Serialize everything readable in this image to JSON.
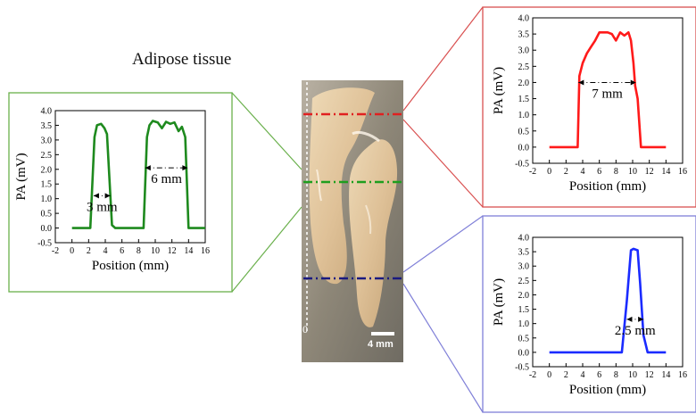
{
  "title": "Adipose tissue",
  "photo": {
    "zero_label": "0",
    "scalebar_label": "4 mm",
    "line_colors": [
      "#e02020",
      "#1e9e1e",
      "#1a1a80"
    ]
  },
  "chart_data": [
    {
      "type": "line",
      "color": "#1e8a1e",
      "frame_color": "#6ab04c",
      "xlabel": "Position (mm)",
      "ylabel": "PA (mV)",
      "xlim": [
        -2,
        16
      ],
      "ylim": [
        -0.5,
        4.0
      ],
      "xticks": [
        "-2",
        "0",
        "2",
        "4",
        "6",
        "8",
        "10",
        "12",
        "14",
        "16"
      ],
      "yticks": [
        "-0.5",
        "0.0",
        "0.5",
        "1.0",
        "1.5",
        "2.0",
        "2.5",
        "3.0",
        "3.5",
        "4.0"
      ],
      "x": [
        0,
        2.2,
        2.7,
        3.0,
        3.5,
        3.9,
        4.2,
        4.8,
        5.2,
        8.6,
        9.0,
        9.3,
        9.7,
        10.3,
        10.8,
        11.3,
        11.8,
        12.3,
        12.8,
        13.2,
        13.6,
        14.0,
        16.0
      ],
      "y": [
        0,
        0,
        3.1,
        3.5,
        3.55,
        3.4,
        3.2,
        0.1,
        0,
        0,
        3.1,
        3.5,
        3.65,
        3.6,
        3.4,
        3.62,
        3.55,
        3.6,
        3.3,
        3.45,
        3.1,
        0,
        0
      ],
      "annotations": [
        {
          "text": "3 mm",
          "x1": 2.6,
          "x2": 4.6,
          "y": 1.1
        },
        {
          "text": "6 mm",
          "x1": 8.8,
          "x2": 13.9,
          "y": 2.05
        }
      ]
    },
    {
      "type": "line",
      "color": "#ff1a1a",
      "frame_color": "#d95050",
      "xlabel": "Position (mm)",
      "ylabel": "PA (mV)",
      "xlim": [
        -2,
        16
      ],
      "ylim": [
        -0.5,
        4.0
      ],
      "xticks": [
        "-2",
        "0",
        "2",
        "4",
        "6",
        "8",
        "10",
        "12",
        "14",
        "16"
      ],
      "yticks": [
        "-0.5",
        "0.0",
        "0.5",
        "1.0",
        "1.5",
        "2.0",
        "2.5",
        "3.0",
        "3.5",
        "4.0"
      ],
      "x": [
        0,
        3.4,
        3.6,
        4.0,
        4.5,
        5.0,
        5.5,
        6.0,
        7.0,
        7.5,
        8.0,
        8.5,
        9.0,
        9.5,
        9.8,
        10.1,
        10.3,
        10.6,
        11.0,
        14.0
      ],
      "y": [
        0,
        0,
        2.2,
        2.6,
        2.9,
        3.1,
        3.3,
        3.55,
        3.55,
        3.5,
        3.3,
        3.55,
        3.45,
        3.55,
        3.3,
        2.6,
        1.9,
        1.5,
        0,
        0
      ],
      "annotations": [
        {
          "text": "7 mm",
          "x1": 3.5,
          "x2": 10.4,
          "y": 2.0
        }
      ]
    },
    {
      "type": "line",
      "color": "#1a2bff",
      "frame_color": "#8080d8",
      "xlabel": "Position (mm)",
      "ylabel": "PA (mV)",
      "xlim": [
        -2,
        16
      ],
      "ylim": [
        -0.5,
        4.0
      ],
      "xticks": [
        "-2",
        "0",
        "2",
        "4",
        "6",
        "8",
        "10",
        "12",
        "14",
        "16"
      ],
      "yticks": [
        "-0.5",
        "0.0",
        "0.5",
        "1.0",
        "1.5",
        "2.0",
        "2.5",
        "3.0",
        "3.5",
        "4.0"
      ],
      "x": [
        0,
        8.7,
        9.3,
        9.8,
        10.1,
        10.6,
        10.9,
        11.3,
        11.8,
        14.0
      ],
      "y": [
        0,
        0,
        1.8,
        3.55,
        3.6,
        3.55,
        2.4,
        0.6,
        0,
        0
      ],
      "annotations": [
        {
          "text": "2.5 mm",
          "x1": 9.3,
          "x2": 11.3,
          "y": 1.15
        }
      ]
    }
  ]
}
